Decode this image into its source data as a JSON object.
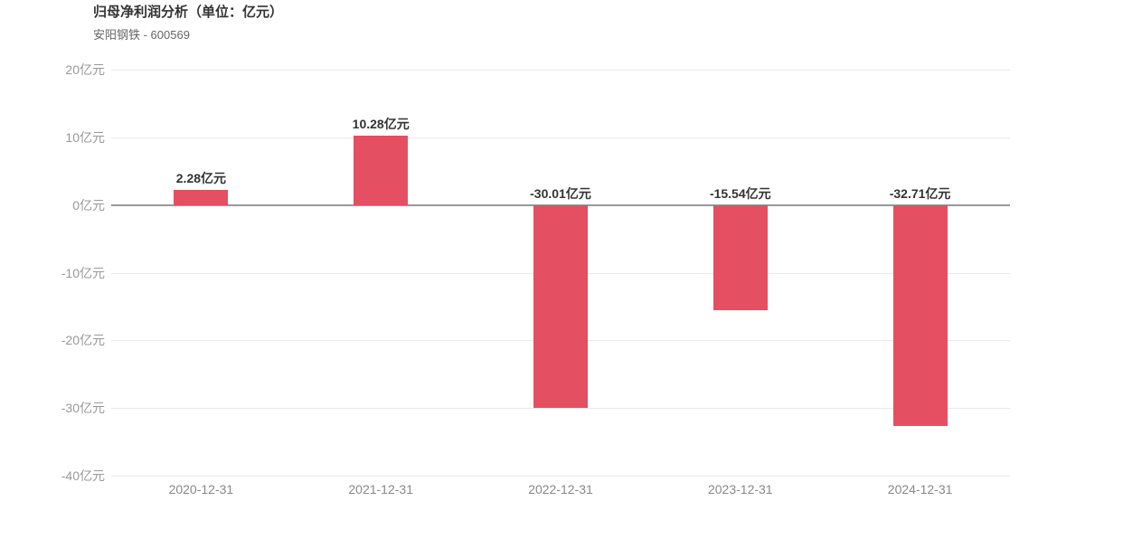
{
  "header": {
    "title": "归母净利润分析（单位：亿元）",
    "subtitle": "安阳钢铁 - 600569"
  },
  "chart_data": {
    "type": "bar",
    "title": "归母净利润分析（单位：亿元）",
    "subtitle": "安阳钢铁 - 600569",
    "unit": "亿元",
    "categories": [
      "2020-12-31",
      "2021-12-31",
      "2022-12-31",
      "2023-12-31",
      "2024-12-31"
    ],
    "values": [
      2.28,
      10.28,
      -30.01,
      -15.54,
      -32.71
    ],
    "value_labels": [
      "2.28亿元",
      "10.28亿元",
      "-30.01亿元",
      "-15.54亿元",
      "-32.71亿元"
    ],
    "yticks": [
      20,
      10,
      0,
      -10,
      -20,
      -30,
      -40
    ],
    "ytick_labels": [
      "20亿元",
      "10亿元",
      "0亿元",
      "-10亿元",
      "-20亿元",
      "-30亿元",
      "-40亿元"
    ],
    "ylim": [
      -40,
      20
    ],
    "grid": true,
    "legend_position": "none",
    "colors": {
      "bar": "#e44f62",
      "gridline": "#e9e9e9",
      "zero_line": "#999999",
      "title": "#333333",
      "subtitle": "#666666",
      "y_axis_label": "#999999",
      "x_axis_label": "#888888",
      "value_label": "#333333",
      "background": "#ffffff"
    }
  }
}
